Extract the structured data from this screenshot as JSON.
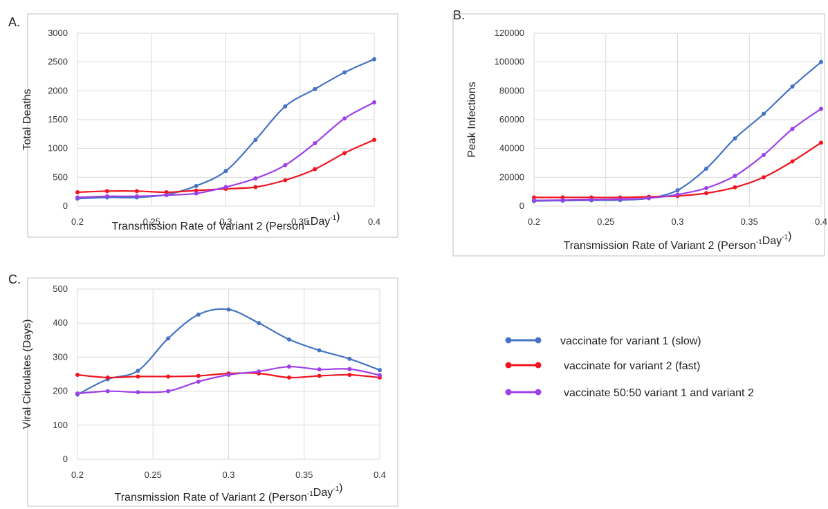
{
  "colors": {
    "series1": "#4472C4",
    "series2": "#F0141E",
    "series3": "#9D3FE8",
    "grid": "#d9d9d9",
    "frame": "#bfbfbf"
  },
  "legend": {
    "placement": "right",
    "entries": [
      "vaccinate for variant 1 (slow)",
      "vaccinate for variant 2 (fast)",
      "vaccinate 50:50 variant 1 and variant 2"
    ]
  },
  "chart_data": [
    {
      "type": "line",
      "panel_label": "A.",
      "xlabel": {
        "main": "Transmission Rate of Variant 2 (Person",
        "sup1": "-1",
        "mid": "Day",
        "sup2": "-1",
        "end": ")"
      },
      "ylabel": "Total Deaths",
      "xlim": [
        0.2,
        0.4
      ],
      "ylim": [
        0,
        3000
      ],
      "x_ticks": [
        "0.2",
        "0.25",
        "0.3",
        "0.35",
        "0.4"
      ],
      "x_tick_values": [
        0.2,
        0.25,
        0.3,
        0.35,
        0.4
      ],
      "y_ticks": [
        "0",
        "500",
        "1000",
        "1500",
        "2000",
        "2500",
        "3000"
      ],
      "y_tick_values": [
        0,
        500,
        1000,
        1500,
        2000,
        2500,
        3000
      ],
      "grid": true,
      "x": [
        0.2,
        0.22,
        0.24,
        0.26,
        0.28,
        0.3,
        0.32,
        0.34,
        0.36,
        0.38,
        0.4
      ],
      "series": [
        {
          "values": [
            130,
            150,
            150,
            200,
            350,
            610,
            1150,
            1730,
            2030,
            2320,
            2550
          ]
        },
        {
          "values": [
            240,
            260,
            260,
            240,
            270,
            300,
            330,
            450,
            640,
            920,
            1150
          ]
        },
        {
          "values": [
            150,
            170,
            170,
            190,
            220,
            330,
            480,
            710,
            1090,
            1520,
            1800
          ]
        }
      ]
    },
    {
      "type": "line",
      "panel_label": "B.",
      "xlabel": {
        "main": "Transmission Rate of Variant 2 (Person",
        "sup1": "-1",
        "mid": "Day",
        "sup2": "-1",
        "end": ")"
      },
      "ylabel": "Peak Infections",
      "xlim": [
        0.2,
        0.4
      ],
      "ylim": [
        0,
        120000
      ],
      "x_ticks": [
        "0.2",
        "0.25",
        "0.3",
        "0.35",
        "0.4"
      ],
      "x_tick_values": [
        0.2,
        0.25,
        0.3,
        0.35,
        0.4
      ],
      "y_ticks": [
        "0",
        "20000",
        "40000",
        "60000",
        "80000",
        "100000",
        "120000"
      ],
      "y_tick_values": [
        0,
        20000,
        40000,
        60000,
        80000,
        100000,
        120000
      ],
      "grid": true,
      "x": [
        0.2,
        0.22,
        0.24,
        0.26,
        0.28,
        0.3,
        0.32,
        0.34,
        0.36,
        0.38,
        0.4
      ],
      "series": [
        {
          "values": [
            3500,
            3800,
            4000,
            4200,
            5500,
            11000,
            26000,
            47000,
            64000,
            83000,
            100000
          ]
        },
        {
          "values": [
            6000,
            6000,
            6000,
            6000,
            6500,
            7000,
            9000,
            13000,
            20000,
            31000,
            44000
          ]
        },
        {
          "values": [
            4000,
            4200,
            4500,
            4800,
            5500,
            8000,
            12500,
            21000,
            35500,
            53500,
            67500
          ]
        }
      ]
    },
    {
      "type": "line",
      "panel_label": "C.",
      "xlabel": {
        "main": "Transmission Rate of Variant 2 (Person",
        "sup1": "-1",
        "mid": "Day",
        "sup2": "-1",
        "end": ")"
      },
      "ylabel": "Viral Circulates (Days)",
      "xlim": [
        0.2,
        0.4
      ],
      "ylim": [
        0,
        500
      ],
      "x_ticks": [
        "0.2",
        "0.25",
        "0.3",
        "0.35",
        "0.4"
      ],
      "x_tick_values": [
        0.2,
        0.25,
        0.3,
        0.35,
        0.4
      ],
      "y_ticks": [
        "0",
        "100",
        "200",
        "300",
        "400",
        "500"
      ],
      "y_tick_values": [
        0,
        100,
        200,
        300,
        400,
        500
      ],
      "grid": true,
      "x": [
        0.2,
        0.22,
        0.24,
        0.26,
        0.28,
        0.3,
        0.32,
        0.34,
        0.36,
        0.38,
        0.4
      ],
      "series": [
        {
          "values": [
            190,
            235,
            260,
            355,
            425,
            440,
            400,
            352,
            320,
            295,
            262
          ]
        },
        {
          "values": [
            248,
            240,
            243,
            243,
            245,
            252,
            252,
            240,
            245,
            248,
            240
          ]
        },
        {
          "values": [
            193,
            200,
            197,
            200,
            228,
            248,
            258,
            272,
            264,
            265,
            247
          ]
        }
      ]
    }
  ]
}
